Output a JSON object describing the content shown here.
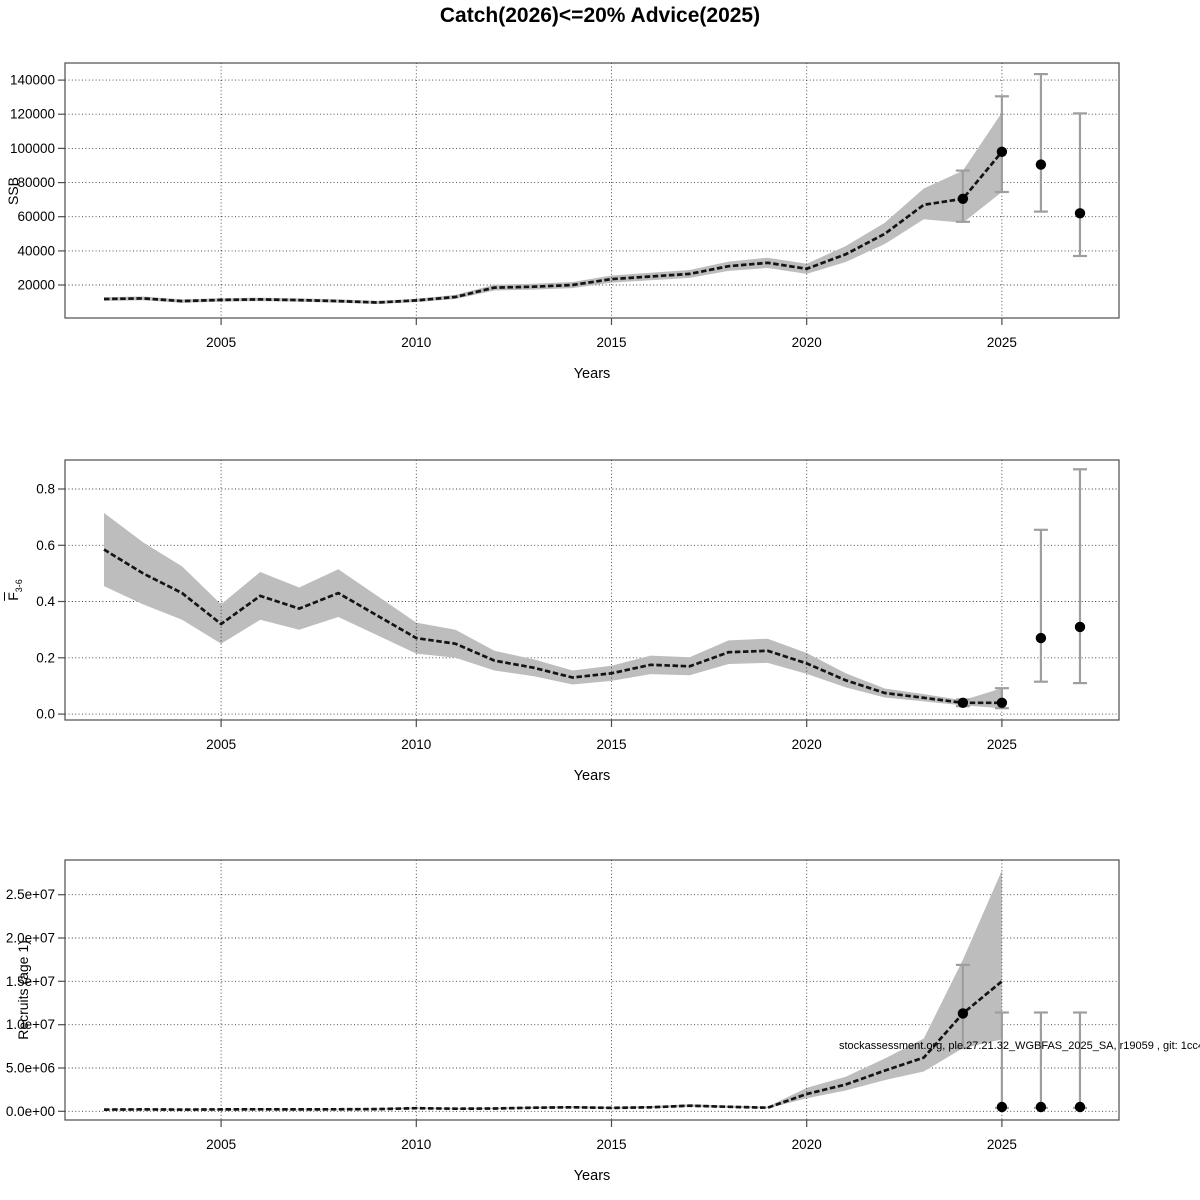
{
  "title": "Catch(2026)<=20% Advice(2025)",
  "watermark": "stockassessment.org, ple.27.21.32_WGBFAS_2025_SA, r19059 , git: 1cc4",
  "colors": {
    "ribbon": "#bdbdbd",
    "line": "#141414",
    "whisker": "#9e9e9e",
    "dot": "#000000",
    "grid": "#1a1a1a",
    "box": "#4d4d4d"
  },
  "x_axis": {
    "label": "Years",
    "ticks": [
      2005,
      2010,
      2015,
      2020,
      2025
    ],
    "tick_labels": [
      "2005",
      "2010",
      "2015",
      "2020",
      "2025"
    ],
    "lim": [
      2001,
      2028
    ]
  },
  "chart_data": [
    {
      "type": "line",
      "name": "ssb",
      "ylabel": "SSB",
      "ylim": [
        700,
        150000
      ],
      "yticks": [
        20000,
        40000,
        60000,
        80000,
        100000,
        120000,
        140000
      ],
      "ytick_labels": [
        "20000",
        "40000",
        "60000",
        "80000",
        "100000",
        "120000",
        "140000"
      ],
      "years": [
        2002,
        2003,
        2004,
        2005,
        2006,
        2007,
        2008,
        2009,
        2010,
        2011,
        2012,
        2013,
        2014,
        2015,
        2016,
        2017,
        2018,
        2019,
        2020,
        2021,
        2022,
        2023,
        2024,
        2025
      ],
      "estimate": [
        11800,
        12200,
        10600,
        11300,
        11600,
        11200,
        10600,
        9800,
        11000,
        13000,
        18500,
        19000,
        20000,
        23500,
        25000,
        26500,
        31000,
        33000,
        29500,
        38000,
        50000,
        67000,
        70500,
        98000
      ],
      "lower": [
        10700,
        11100,
        9600,
        10300,
        10600,
        10200,
        9600,
        8900,
        10000,
        11800,
        16800,
        17300,
        18200,
        21400,
        22800,
        24200,
        28300,
        30000,
        26500,
        33500,
        44000,
        58500,
        56500,
        74500
      ],
      "upper": [
        12900,
        13300,
        11600,
        12300,
        12600,
        12200,
        11600,
        10700,
        12000,
        14200,
        20200,
        20700,
        21800,
        25600,
        27200,
        28800,
        33700,
        36000,
        32500,
        42800,
        56500,
        76500,
        87000,
        121000
      ],
      "points": [
        {
          "year": 2024,
          "value": 70500,
          "lower": 57000,
          "upper": 87000
        },
        {
          "year": 2025,
          "value": 98000,
          "lower": 74500,
          "upper": 130500
        },
        {
          "year": 2026,
          "value": 90500,
          "lower": 63000,
          "upper": 143500
        },
        {
          "year": 2027,
          "value": 62000,
          "lower": 37000,
          "upper": 120500
        }
      ]
    },
    {
      "type": "line",
      "name": "fbar",
      "ylabel": "F",
      "ylabel_sub": "3-6",
      "ylabel_overline": true,
      "ylim": [
        -0.021,
        0.903
      ],
      "yticks": [
        0.0,
        0.2,
        0.4,
        0.6,
        0.8
      ],
      "ytick_labels": [
        "0.0",
        "0.2",
        "0.4",
        "0.6",
        "0.8"
      ],
      "years": [
        2002,
        2003,
        2004,
        2005,
        2006,
        2007,
        2008,
        2009,
        2010,
        2011,
        2012,
        2013,
        2014,
        2015,
        2016,
        2017,
        2018,
        2019,
        2020,
        2021,
        2022,
        2023,
        2024,
        2025
      ],
      "estimate": [
        0.585,
        0.5,
        0.43,
        0.32,
        0.42,
        0.375,
        0.43,
        0.35,
        0.27,
        0.25,
        0.19,
        0.165,
        0.13,
        0.145,
        0.175,
        0.17,
        0.22,
        0.225,
        0.18,
        0.12,
        0.075,
        0.058,
        0.04,
        0.04
      ],
      "lower": [
        0.455,
        0.39,
        0.335,
        0.25,
        0.335,
        0.3,
        0.345,
        0.28,
        0.215,
        0.2,
        0.155,
        0.135,
        0.105,
        0.118,
        0.142,
        0.138,
        0.178,
        0.182,
        0.143,
        0.095,
        0.059,
        0.045,
        0.031,
        0.021
      ],
      "upper": [
        0.715,
        0.61,
        0.525,
        0.39,
        0.505,
        0.45,
        0.515,
        0.42,
        0.325,
        0.3,
        0.225,
        0.195,
        0.155,
        0.172,
        0.208,
        0.202,
        0.262,
        0.268,
        0.217,
        0.145,
        0.091,
        0.071,
        0.049,
        0.092
      ],
      "points": [
        {
          "year": 2024,
          "value": 0.04,
          "lower": 0.028,
          "upper": 0.052
        },
        {
          "year": 2025,
          "value": 0.04,
          "lower": 0.021,
          "upper": 0.092
        },
        {
          "year": 2026,
          "value": 0.27,
          "lower": 0.115,
          "upper": 0.655
        },
        {
          "year": 2027,
          "value": 0.31,
          "lower": 0.11,
          "upper": 0.87
        }
      ]
    },
    {
      "type": "line",
      "name": "recruits",
      "ylabel": "Recruits (age 1)",
      "ylim": [
        -1000000,
        29000000
      ],
      "yticks": [
        0,
        5000000,
        10000000,
        15000000,
        20000000,
        25000000
      ],
      "ytick_labels": [
        "0.0e+00",
        "5.0e+06",
        "1.0e+07",
        "1.5e+07",
        "2.0e+07",
        "2.5e+07"
      ],
      "years": [
        2002,
        2003,
        2004,
        2005,
        2006,
        2007,
        2008,
        2009,
        2010,
        2011,
        2012,
        2013,
        2014,
        2015,
        2016,
        2017,
        2018,
        2019,
        2020,
        2021,
        2022,
        2023,
        2024,
        2025
      ],
      "estimate": [
        200000,
        220000,
        200000,
        220000,
        240000,
        220000,
        240000,
        260000,
        360000,
        300000,
        330000,
        420000,
        460000,
        400000,
        460000,
        650000,
        520000,
        420000,
        2000000,
        3100000,
        4700000,
        6200000,
        11300000,
        15000000
      ],
      "lower": [
        160000,
        175000,
        160000,
        175000,
        190000,
        175000,
        190000,
        210000,
        290000,
        240000,
        265000,
        335000,
        370000,
        320000,
        370000,
        520000,
        415000,
        335000,
        1500000,
        2400000,
        3600000,
        4600000,
        7300000,
        8300000
      ],
      "upper": [
        250000,
        275000,
        250000,
        275000,
        300000,
        275000,
        300000,
        325000,
        450000,
        375000,
        415000,
        525000,
        575000,
        500000,
        575000,
        815000,
        650000,
        525000,
        2700000,
        4000000,
        6100000,
        8400000,
        17500000,
        27800000
      ],
      "points": [
        {
          "year": 2024,
          "value": 11300000,
          "lower": 7300000,
          "upper": 16900000
        },
        {
          "year": 2025,
          "value": 500000,
          "lower": 400000,
          "upper": 11400000
        },
        {
          "year": 2026,
          "value": 500000,
          "lower": 400000,
          "upper": 11400000
        },
        {
          "year": 2027,
          "value": 500000,
          "lower": 400000,
          "upper": 11400000
        }
      ]
    }
  ]
}
